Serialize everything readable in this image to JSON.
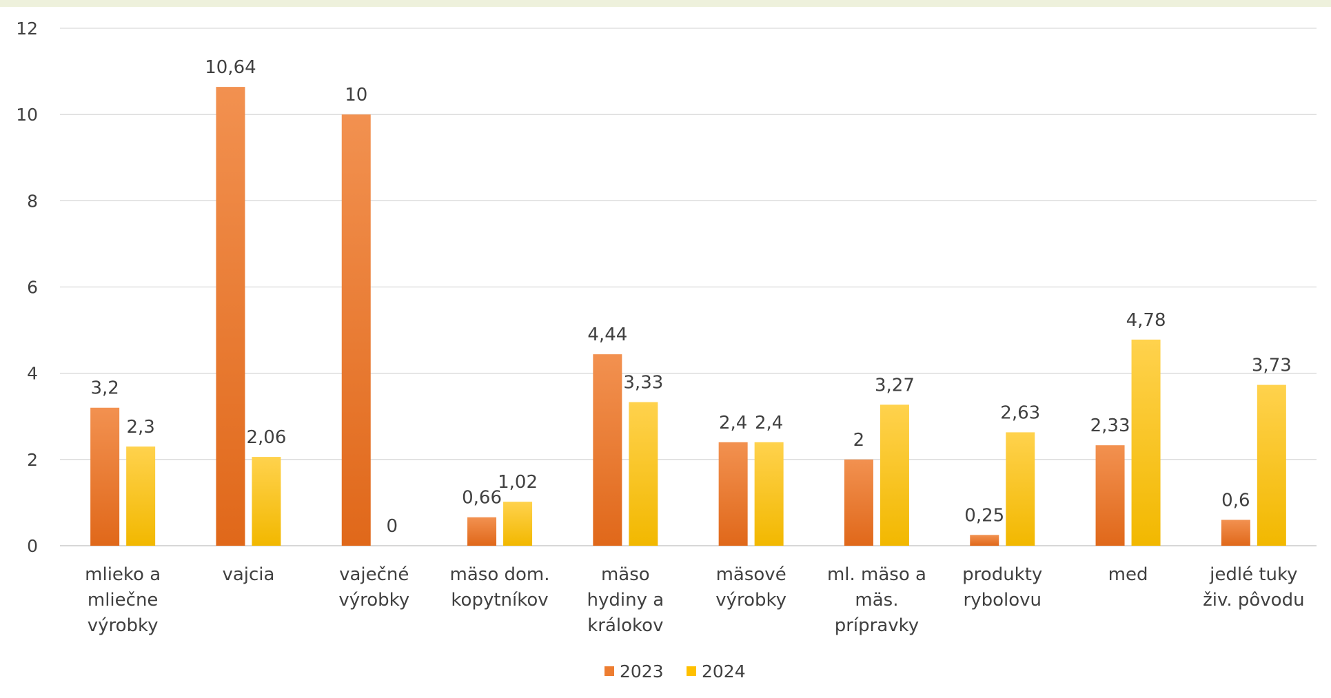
{
  "chart_data": {
    "type": "bar",
    "categories": [
      [
        "mlieko a",
        "mliečne",
        "výrobky"
      ],
      [
        "vajcia"
      ],
      [
        "vaječné",
        "výrobky"
      ],
      [
        "mäso dom.",
        "kopytníkov"
      ],
      [
        "mäso",
        "hydiny a",
        "králokov"
      ],
      [
        "mäsové",
        "výrobky"
      ],
      [
        "ml. mäso a",
        "mäs.",
        "prípravky"
      ],
      [
        "produkty",
        "rybolovu"
      ],
      [
        "med"
      ],
      [
        "jedlé tuky",
        "živ. pôvodu"
      ]
    ],
    "series": [
      {
        "name": "2023",
        "color": "#ed7d31",
        "values": [
          3.2,
          10.64,
          10,
          0.66,
          4.44,
          2.4,
          2,
          0.25,
          2.33,
          0.6
        ],
        "labels": [
          "3,2",
          "10,64",
          "10",
          "0,66",
          "4,44",
          "2,4",
          "2",
          "0,25",
          "2,33",
          "0,6"
        ]
      },
      {
        "name": "2024",
        "color": "#ffc000",
        "values": [
          2.3,
          2.06,
          0,
          1.02,
          3.33,
          2.4,
          3.27,
          2.63,
          4.78,
          3.73
        ],
        "labels": [
          "2,3",
          "2,06",
          "0",
          "1,02",
          "3,33",
          "2,4",
          "3,27",
          "2,63",
          "4,78",
          "3,73"
        ]
      }
    ],
    "ylim": [
      0,
      12
    ],
    "yticks": [
      "0",
      "2",
      "4",
      "6",
      "8",
      "10",
      "12"
    ],
    "ytick_values": [
      0,
      2,
      4,
      6,
      8,
      10,
      12
    ],
    "grid": true,
    "legend": "bottom-center"
  }
}
